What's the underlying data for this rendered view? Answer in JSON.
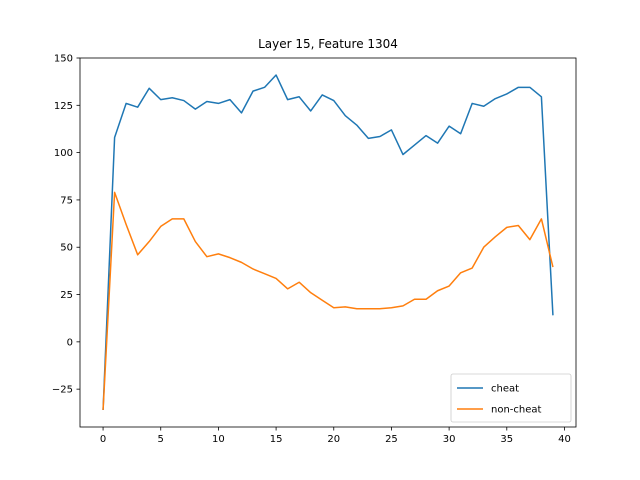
{
  "chart_data": {
    "type": "line",
    "title": "Layer 15, Feature 1304",
    "xlabel": "",
    "ylabel": "",
    "xlim": [
      -2,
      41
    ],
    "ylim": [
      -45,
      150
    ],
    "x_ticks": [
      0,
      5,
      10,
      15,
      20,
      25,
      30,
      35,
      40
    ],
    "y_ticks": [
      -25,
      0,
      25,
      50,
      75,
      100,
      125,
      150
    ],
    "legend_position": "lower-right",
    "grid": false,
    "x": [
      0,
      1,
      2,
      3,
      4,
      5,
      6,
      7,
      8,
      9,
      10,
      11,
      12,
      13,
      14,
      15,
      16,
      17,
      18,
      19,
      20,
      21,
      22,
      23,
      24,
      25,
      26,
      27,
      28,
      29,
      30,
      31,
      32,
      33,
      34,
      35,
      36,
      37,
      38,
      39
    ],
    "series": [
      {
        "name": "cheat",
        "color": "#1f77b4",
        "values": [
          -36,
          108,
          126,
          124,
          134,
          128,
          129,
          127.5,
          123,
          127,
          126,
          128,
          121,
          132.5,
          134.5,
          141,
          128,
          129.5,
          122,
          130.5,
          127.5,
          119.5,
          114.5,
          107.5,
          108.5,
          112,
          99,
          104,
          109,
          105,
          114,
          110,
          126,
          124.5,
          128.5,
          131,
          134.5,
          134.5,
          129.5,
          14
        ]
      },
      {
        "name": "non-cheat",
        "color": "#ff7f0e",
        "values": [
          -36,
          79,
          62,
          46,
          53,
          61,
          65,
          65,
          53,
          45,
          46.5,
          44.5,
          42,
          38.5,
          36,
          33.5,
          28,
          31.5,
          26,
          22,
          18,
          18.5,
          17.5,
          17.5,
          17.5,
          18,
          19,
          22.5,
          22.5,
          27,
          29.5,
          36.5,
          39,
          50,
          55.5,
          60.5,
          61.5,
          54,
          65,
          39.5
        ]
      }
    ]
  }
}
